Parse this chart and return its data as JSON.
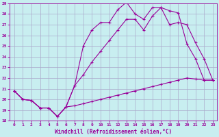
{
  "xlabel": "Windchill (Refroidissement éolien,°C)",
  "background_color": "#c8eef0",
  "line_color": "#990099",
  "grid_color": "#aaaacc",
  "xlim": [
    -0.5,
    23.5
  ],
  "ylim": [
    18,
    29
  ],
  "xticks": [
    0,
    1,
    2,
    3,
    4,
    5,
    6,
    7,
    8,
    9,
    10,
    11,
    12,
    13,
    14,
    15,
    16,
    17,
    18,
    19,
    20,
    21,
    22,
    23
  ],
  "yticks": [
    18,
    19,
    20,
    21,
    22,
    23,
    24,
    25,
    26,
    27,
    28,
    29
  ],
  "line1_x": [
    0,
    1,
    2,
    3,
    4,
    5,
    6,
    7,
    8,
    9,
    10,
    11,
    12,
    13,
    14,
    15,
    16,
    17,
    18,
    19,
    20,
    21,
    22,
    23
  ],
  "line1_y": [
    20.8,
    20.0,
    19.9,
    19.2,
    19.2,
    18.4,
    19.3,
    19.4,
    19.6,
    19.8,
    20.0,
    20.2,
    20.4,
    20.6,
    20.8,
    21.0,
    21.2,
    21.4,
    21.6,
    21.8,
    22.0,
    21.9,
    21.8,
    21.8
  ],
  "line2_x": [
    0,
    1,
    2,
    3,
    4,
    5,
    6,
    7,
    8,
    9,
    10,
    11,
    12,
    13,
    14,
    15,
    16,
    17,
    18,
    19,
    20,
    21,
    22,
    23
  ],
  "line2_y": [
    20.8,
    20.0,
    19.9,
    19.2,
    19.2,
    18.4,
    19.3,
    21.3,
    22.3,
    23.5,
    24.5,
    25.5,
    26.5,
    27.5,
    27.5,
    26.5,
    27.8,
    28.6,
    27.0,
    27.2,
    27.0,
    25.3,
    23.8,
    21.8
  ],
  "line3_x": [
    0,
    1,
    2,
    3,
    4,
    5,
    6,
    7,
    8,
    9,
    10,
    11,
    12,
    13,
    14,
    15,
    16,
    17,
    18,
    19,
    20,
    21,
    22,
    23
  ],
  "line3_y": [
    20.8,
    20.0,
    19.9,
    19.2,
    19.2,
    18.4,
    19.3,
    21.3,
    25.0,
    26.5,
    27.2,
    27.2,
    28.4,
    29.1,
    28.0,
    27.5,
    28.6,
    28.6,
    28.3,
    28.1,
    25.2,
    23.8,
    21.8,
    21.8
  ]
}
